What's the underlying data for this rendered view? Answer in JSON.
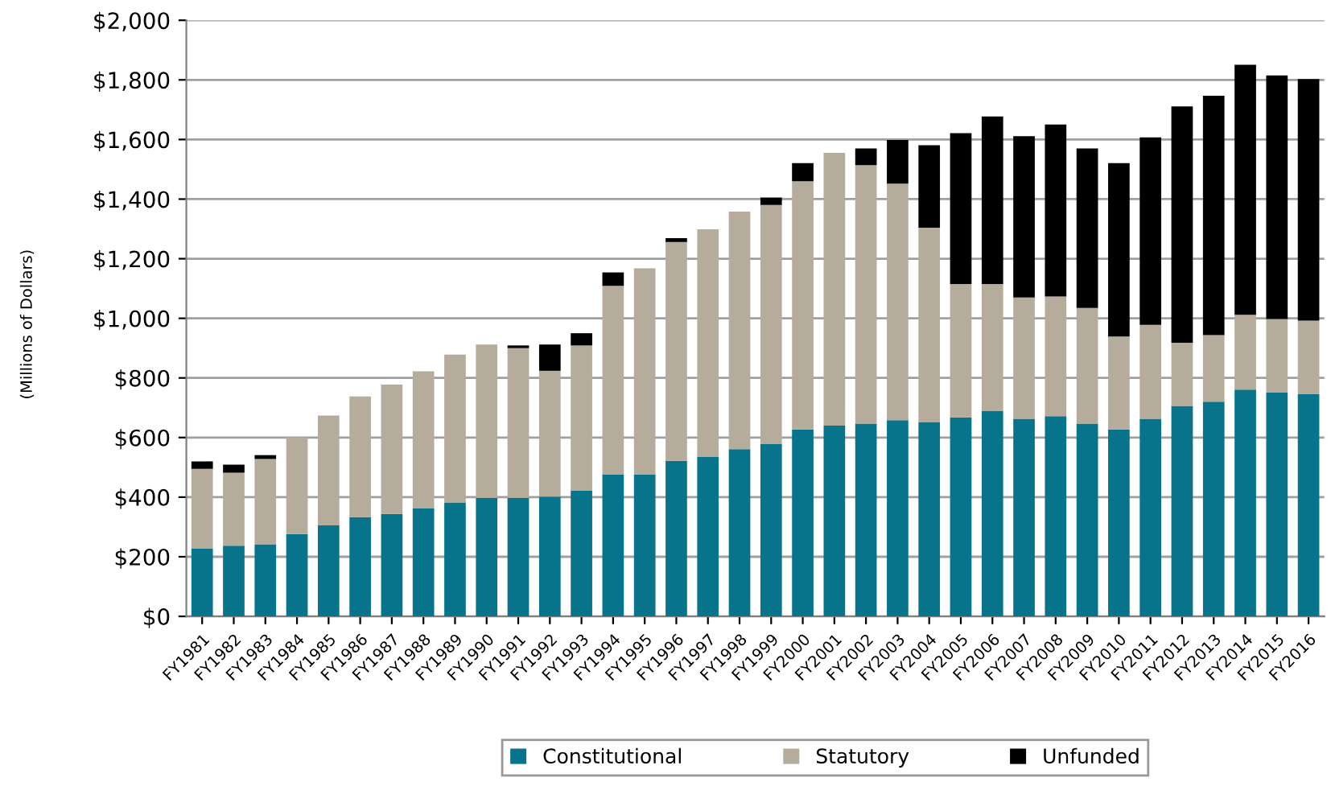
{
  "chart_data": {
    "type": "bar",
    "stacked": true,
    "ylabel": "(Millions of Dollars)",
    "categories": [
      "FY1981",
      "FY1982",
      "FY1983",
      "FY1984",
      "FY1985",
      "FY1986",
      "FY1987",
      "FY1988",
      "FY1989",
      "FY1990",
      "FY1991",
      "FY1992",
      "FY1993",
      "FY1994",
      "FY1995",
      "FY1996",
      "FY1997",
      "FY1998",
      "FY1999",
      "FY2000",
      "FY2001",
      "FY2002",
      "FY2003",
      "FY2004",
      "FY2005",
      "FY2006",
      "FY2007",
      "FY2008",
      "FY2009",
      "FY2010",
      "FY2011",
      "FY2012",
      "FY2013",
      "FY2014",
      "FY2015",
      "FY2016"
    ],
    "series": [
      {
        "name": "Constitutional",
        "color": "#08748c",
        "values": [
          227,
          237,
          242,
          276,
          305,
          333,
          344,
          362,
          382,
          398,
          398,
          402,
          421,
          475,
          475,
          522,
          536,
          561,
          579,
          627,
          640,
          647,
          658,
          652,
          668,
          690,
          663,
          672,
          647,
          627,
          663,
          706,
          720,
          761,
          751,
          745
        ]
      },
      {
        "name": "Statutory",
        "color": "#b5ac9c",
        "values": [
          268,
          245,
          286,
          324,
          369,
          405,
          434,
          460,
          496,
          514,
          502,
          422,
          488,
          634,
          693,
          734,
          763,
          797,
          801,
          833,
          915,
          867,
          794,
          652,
          447,
          425,
          407,
          401,
          388,
          312,
          315,
          212,
          224,
          251,
          247,
          247
        ]
      },
      {
        "name": "Unfunded",
        "color": "#000000",
        "values": [
          25,
          27,
          13,
          0,
          0,
          0,
          0,
          0,
          0,
          0,
          9,
          88,
          41,
          45,
          0,
          13,
          0,
          0,
          25,
          61,
          0,
          56,
          146,
          277,
          506,
          562,
          541,
          577,
          535,
          582,
          629,
          793,
          803,
          839,
          817,
          811
        ]
      }
    ],
    "ylim": [
      0,
      2000
    ],
    "yticks": [
      {
        "value": 0,
        "label": "$0"
      },
      {
        "value": 200,
        "label": "$200"
      },
      {
        "value": 400,
        "label": "$400"
      },
      {
        "value": 600,
        "label": "$600"
      },
      {
        "value": 800,
        "label": "$800"
      },
      {
        "value": 1000,
        "label": "$1,000"
      },
      {
        "value": 1200,
        "label": "$1,200"
      },
      {
        "value": 1400,
        "label": "$1,400"
      },
      {
        "value": 1600,
        "label": "$1,600"
      },
      {
        "value": 1800,
        "label": "$1,800"
      },
      {
        "value": 2000,
        "label": "$2,000"
      }
    ],
    "grid": "y",
    "legend": "bottom"
  }
}
